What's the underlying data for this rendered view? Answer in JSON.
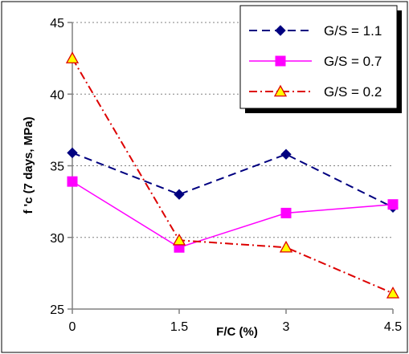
{
  "chart_data": {
    "type": "line",
    "title": "",
    "xlabel": "F/C (%)",
    "ylabel": "f 'c (7 days, MPa)",
    "x": [
      0,
      1.5,
      3,
      4.5
    ],
    "x_tick_labels": [
      "0",
      "1.5",
      "3",
      "4.5"
    ],
    "y_ticks": [
      25,
      30,
      35,
      40,
      45
    ],
    "y_tick_labels": [
      "25",
      "30",
      "35",
      "40",
      "45"
    ],
    "ylim": [
      25,
      45
    ],
    "xlim": [
      0,
      4.5
    ],
    "grid": "horizontal dashed",
    "legend_position": "top-right",
    "series": [
      {
        "name": "G/S = 1.1",
        "values": [
          35.9,
          33.0,
          35.8,
          32.1
        ],
        "color": "#000080",
        "line": "dashed",
        "marker": "diamond"
      },
      {
        "name": "G/S = 0.7",
        "values": [
          33.9,
          29.3,
          31.7,
          32.3
        ],
        "color": "#ff00ff",
        "line": "solid",
        "marker": "square"
      },
      {
        "name": "G/S = 0.2",
        "values": [
          42.5,
          29.8,
          29.3,
          26.1
        ],
        "color": "#dd0000",
        "line": "dash-dot",
        "marker": "triangle",
        "marker_fill": "#ffff00"
      }
    ]
  }
}
